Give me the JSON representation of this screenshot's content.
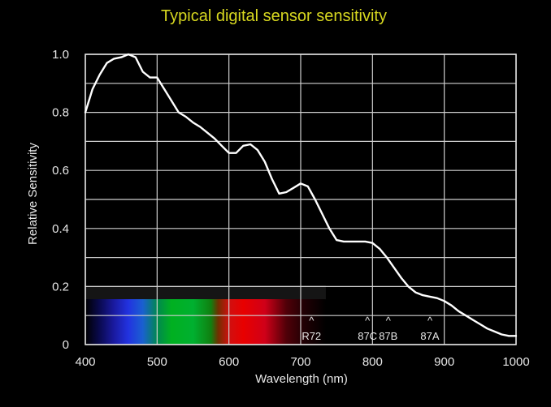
{
  "chart_data": {
    "type": "line",
    "title": "Typical digital sensor sensitivity",
    "xlabel": "Wavelength (nm)",
    "ylabel": "Relative Sensitivity",
    "xlim": [
      400,
      1000
    ],
    "ylim": [
      0,
      1.0
    ],
    "grid": true,
    "x_ticks": [
      400,
      500,
      600,
      700,
      800,
      900,
      1000
    ],
    "y_ticks": [
      0,
      0.2,
      0.4,
      0.6,
      0.8,
      1.0
    ],
    "x_tick_labels": [
      "400",
      "500",
      "600",
      "700",
      "800",
      "900",
      "1000"
    ],
    "y_tick_labels": [
      "0",
      "0.2",
      "0.4",
      "0.6",
      "0.8",
      "1.0"
    ],
    "series": [
      {
        "x": [
          400,
          410,
          420,
          430,
          440,
          450,
          460,
          470,
          480,
          490,
          500,
          510,
          520,
          530,
          540,
          550,
          560,
          570,
          580,
          590,
          600,
          610,
          620,
          630,
          640,
          650,
          660,
          670,
          680,
          690,
          700,
          710,
          720,
          730,
          740,
          750,
          760,
          770,
          780,
          790,
          800,
          810,
          820,
          830,
          840,
          850,
          860,
          870,
          880,
          890,
          900,
          910,
          920,
          930,
          940,
          950,
          960,
          970,
          980,
          990,
          1000
        ],
        "y": [
          0.8,
          0.88,
          0.93,
          0.97,
          0.985,
          0.99,
          1.0,
          0.99,
          0.94,
          0.92,
          0.92,
          0.88,
          0.84,
          0.8,
          0.785,
          0.765,
          0.75,
          0.73,
          0.71,
          0.685,
          0.66,
          0.66,
          0.685,
          0.69,
          0.67,
          0.63,
          0.57,
          0.52,
          0.525,
          0.54,
          0.555,
          0.545,
          0.5,
          0.45,
          0.4,
          0.36,
          0.355,
          0.355,
          0.355,
          0.355,
          0.35,
          0.33,
          0.3,
          0.265,
          0.23,
          0.2,
          0.18,
          0.17,
          0.165,
          0.16,
          0.15,
          0.135,
          0.115,
          0.1,
          0.085,
          0.07,
          0.055,
          0.045,
          0.035,
          0.03,
          0.03
        ],
        "color": "#ffffff"
      }
    ],
    "spectrum": {
      "x_range": [
        400,
        735
      ],
      "stops": [
        {
          "wl": 400,
          "color": "#000000"
        },
        {
          "wl": 420,
          "color": "#0a0a50"
        },
        {
          "wl": 440,
          "color": "#1a1aa0"
        },
        {
          "wl": 460,
          "color": "#2233e0"
        },
        {
          "wl": 480,
          "color": "#1a60d0"
        },
        {
          "wl": 500,
          "color": "#008850"
        },
        {
          "wl": 520,
          "color": "#00b020"
        },
        {
          "wl": 550,
          "color": "#00b030"
        },
        {
          "wl": 575,
          "color": "#108010"
        },
        {
          "wl": 585,
          "color": "#703000"
        },
        {
          "wl": 600,
          "color": "#d01010"
        },
        {
          "wl": 620,
          "color": "#e80000"
        },
        {
          "wl": 650,
          "color": "#d00018"
        },
        {
          "wl": 680,
          "color": "#500008"
        },
        {
          "wl": 705,
          "color": "#200004"
        },
        {
          "wl": 735,
          "color": "#000000"
        }
      ]
    },
    "filter_markers": [
      {
        "label": "R72",
        "wl": 715
      },
      {
        "label": "87C",
        "wl": 793
      },
      {
        "label": "87B",
        "wl": 822
      },
      {
        "label": "87A",
        "wl": 880
      }
    ],
    "marker_symbol": "^"
  }
}
